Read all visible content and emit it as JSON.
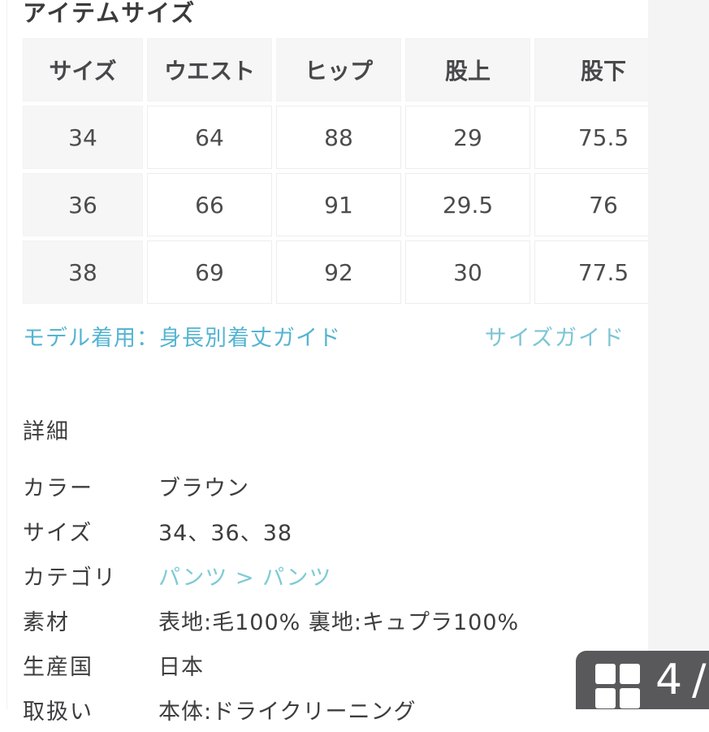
{
  "page_title": "アイテムサイズ",
  "size_table": {
    "headers": [
      "サイズ",
      "ウエスト",
      "ヒップ",
      "股上",
      "股下"
    ],
    "rows": [
      {
        "cells": [
          "34",
          "64",
          "88",
          "29",
          "75.5"
        ]
      },
      {
        "cells": [
          "36",
          "66",
          "91",
          "29.5",
          "76"
        ]
      },
      {
        "cells": [
          "38",
          "69",
          "92",
          "30",
          "77.5"
        ]
      }
    ]
  },
  "links": {
    "model_guide": "モデル着用：身長別着丈ガイド",
    "size_guide": "サイズガイド"
  },
  "details": {
    "heading": "詳細",
    "rows": [
      {
        "label": "カラー",
        "value": "ブラウン"
      },
      {
        "label": "サイズ",
        "value": "34、36、38"
      },
      {
        "label": "カテゴリ",
        "value": "パンツ > パンツ"
      },
      {
        "label": "素材",
        "value": "表地:毛100% 裏地:キュプラ100%"
      },
      {
        "label": "生産国",
        "value": "日本"
      },
      {
        "label": "取扱い",
        "value": "本体:ドライクリーニング"
      }
    ]
  },
  "pager": {
    "current": "4",
    "separator": "/"
  },
  "colors": {
    "link_blue": "#55b4d2",
    "link_teal": "#7cc5d5",
    "header_cell_bg": "#f6f6f7",
    "side_strip_bg": "#f4f4f5",
    "badge_bg": "#59595c",
    "text": "#3d3d3f"
  }
}
